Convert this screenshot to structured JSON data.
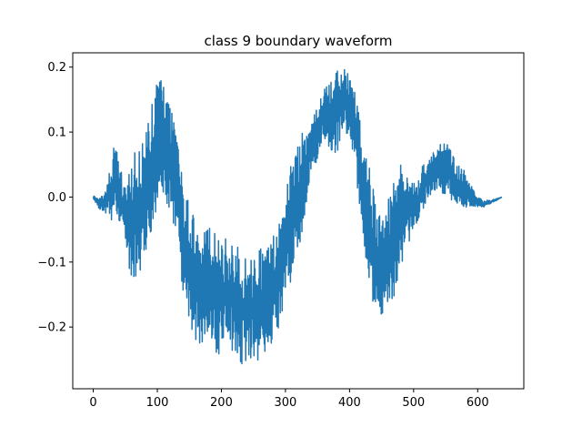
{
  "chart_data": {
    "type": "line",
    "title": "class 9 boundary waveform",
    "xlabel": "",
    "ylabel": "",
    "xlim": [
      -32,
      672
    ],
    "ylim": [
      -0.295,
      0.222
    ],
    "xticks": [
      0,
      100,
      200,
      300,
      400,
      500,
      600
    ],
    "yticks": [
      -0.2,
      -0.1,
      0.0,
      0.1,
      0.2
    ],
    "ytick_labels": [
      "−0.2",
      "−0.1",
      "0.0",
      "0.1",
      "0.2"
    ],
    "grid": false,
    "series_color": "#1f77b4",
    "n_points": 640,
    "envelope": {
      "x": [
        0,
        10,
        20,
        30,
        35,
        40,
        50,
        55,
        60,
        70,
        80,
        90,
        100,
        105,
        110,
        120,
        130,
        140,
        150,
        160,
        170,
        180,
        190,
        200,
        210,
        220,
        230,
        240,
        250,
        260,
        270,
        280,
        290,
        300,
        310,
        320,
        330,
        340,
        350,
        360,
        370,
        380,
        390,
        400,
        410,
        420,
        430,
        440,
        450,
        460,
        470,
        480,
        490,
        500,
        510,
        520,
        530,
        540,
        550,
        560,
        570,
        580,
        590,
        600,
        610,
        620,
        630,
        638
      ],
      "max": [
        0.002,
        0.0,
        0.01,
        0.07,
        0.1,
        0.05,
        0.02,
        0.03,
        0.06,
        0.08,
        0.1,
        0.15,
        0.18,
        0.185,
        0.17,
        0.14,
        0.1,
        0.02,
        -0.01,
        -0.04,
        -0.05,
        -0.04,
        -0.05,
        -0.07,
        -0.06,
        -0.07,
        -0.08,
        -0.07,
        -0.09,
        -0.08,
        -0.07,
        -0.06,
        -0.03,
        0.02,
        0.06,
        0.08,
        0.11,
        0.13,
        0.14,
        0.17,
        0.19,
        0.195,
        0.2,
        0.19,
        0.16,
        0.1,
        0.05,
        0.0,
        -0.02,
        0.01,
        0.04,
        0.05,
        0.03,
        0.02,
        0.04,
        0.06,
        0.07,
        0.08,
        0.085,
        0.07,
        0.05,
        0.04,
        0.02,
        0.0,
        -0.005,
        -0.005,
        -0.002,
        0.0
      ],
      "min": [
        -0.002,
        -0.02,
        -0.03,
        -0.04,
        -0.03,
        -0.04,
        -0.07,
        -0.1,
        -0.14,
        -0.13,
        -0.1,
        -0.06,
        -0.03,
        -0.04,
        0.0,
        -0.02,
        -0.06,
        -0.15,
        -0.2,
        -0.22,
        -0.23,
        -0.21,
        -0.24,
        -0.25,
        -0.23,
        -0.24,
        -0.26,
        -0.27,
        -0.25,
        -0.27,
        -0.24,
        -0.23,
        -0.2,
        -0.17,
        -0.13,
        -0.1,
        -0.03,
        0.03,
        0.06,
        0.08,
        0.07,
        0.06,
        0.1,
        0.09,
        0.03,
        -0.05,
        -0.15,
        -0.19,
        -0.18,
        -0.17,
        -0.16,
        -0.12,
        -0.08,
        -0.05,
        -0.03,
        -0.01,
        0.01,
        0.01,
        0.0,
        -0.01,
        -0.01,
        -0.02,
        -0.015,
        -0.015,
        -0.015,
        -0.01,
        -0.005,
        0.0
      ]
    }
  }
}
